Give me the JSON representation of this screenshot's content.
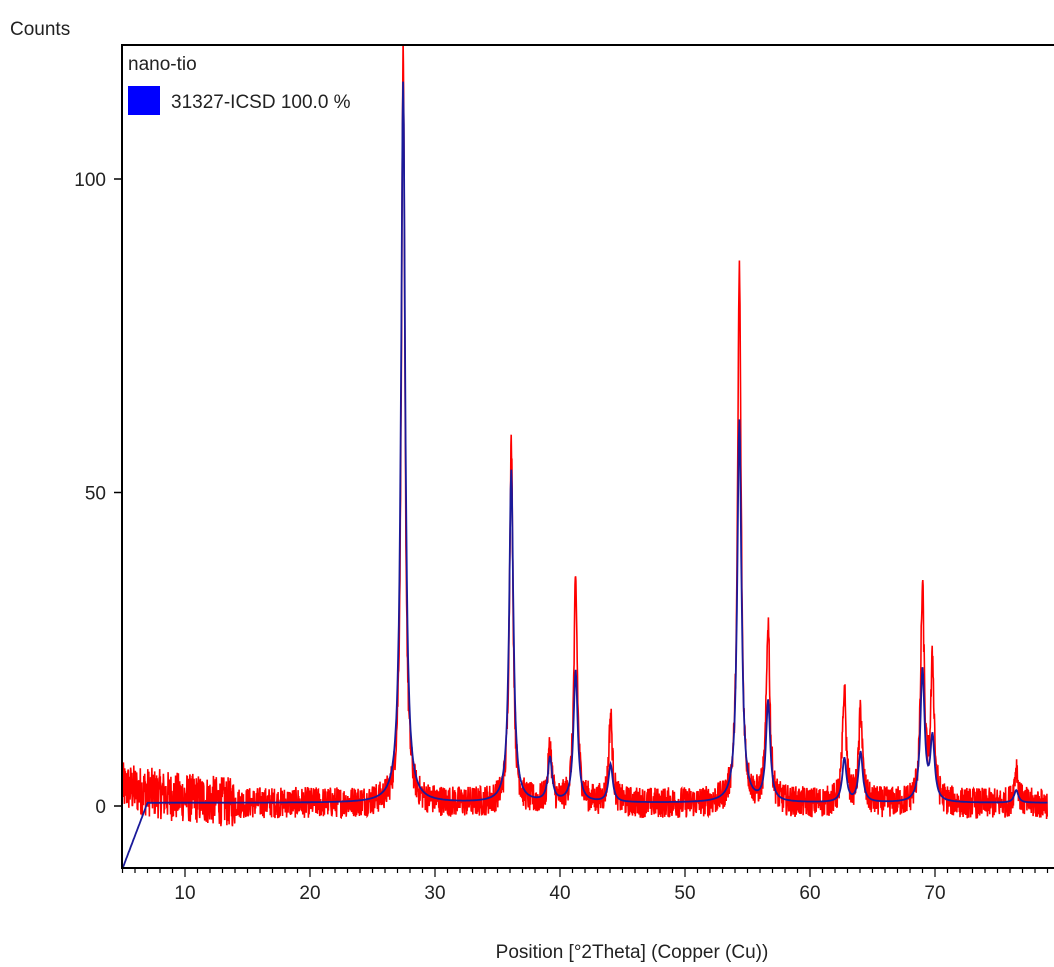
{
  "chart_data": {
    "type": "line",
    "ylabel": "Counts",
    "xlabel": "Position [°2Theta] (Copper (Cu))",
    "sample_label": "nano-tio",
    "xlim": [
      5,
      79
    ],
    "ylim": [
      -10,
      120
    ],
    "x_ticks": [
      10,
      20,
      30,
      40,
      50,
      60,
      70
    ],
    "y_ticks": [
      0,
      50,
      100
    ],
    "x_minor_step": 1,
    "grid": false,
    "legend_position": "top-left",
    "series": [
      {
        "name": "31327-ICSD 100.0 %",
        "role": "reference fit",
        "color": "#0000ff",
        "line_color": "#1a1a9a",
        "baseline": 0.5,
        "x": [
          5,
          7,
          7.5,
          9,
          10,
          25,
          26,
          79
        ],
        "y": [
          -10,
          0.5,
          1,
          0,
          -0.5,
          0,
          -1.5,
          0.5
        ],
        "peaks": [
          {
            "x": 27.45,
            "y": 115
          },
          {
            "x": 36.1,
            "y": 53
          },
          {
            "x": 39.2,
            "y": 7
          },
          {
            "x": 41.25,
            "y": 21
          },
          {
            "x": 44.05,
            "y": 6
          },
          {
            "x": 54.35,
            "y": 61
          },
          {
            "x": 56.65,
            "y": 16
          },
          {
            "x": 62.75,
            "y": 7
          },
          {
            "x": 64.05,
            "y": 8
          },
          {
            "x": 69.0,
            "y": 21
          },
          {
            "x": 69.8,
            "y": 10
          },
          {
            "x": 76.5,
            "y": 2
          }
        ]
      },
      {
        "name": "nano-tio",
        "role": "measured",
        "color": "#ff0000",
        "noise_amplitude": 2.5,
        "baseline": [
          {
            "x": 5,
            "y": 3
          },
          {
            "x": 9,
            "y": 1.5
          },
          {
            "x": 14,
            "y": 0.5
          },
          {
            "x": 79,
            "y": 0.3
          }
        ],
        "peaks": [
          {
            "x": 27.45,
            "y": 119
          },
          {
            "x": 36.1,
            "y": 57
          },
          {
            "x": 39.2,
            "y": 9
          },
          {
            "x": 41.25,
            "y": 35
          },
          {
            "x": 44.05,
            "y": 14
          },
          {
            "x": 54.35,
            "y": 85
          },
          {
            "x": 56.65,
            "y": 29
          },
          {
            "x": 62.75,
            "y": 18
          },
          {
            "x": 64.05,
            "y": 15
          },
          {
            "x": 69.0,
            "y": 34
          },
          {
            "x": 69.8,
            "y": 22
          },
          {
            "x": 76.5,
            "y": 6
          }
        ]
      }
    ]
  }
}
